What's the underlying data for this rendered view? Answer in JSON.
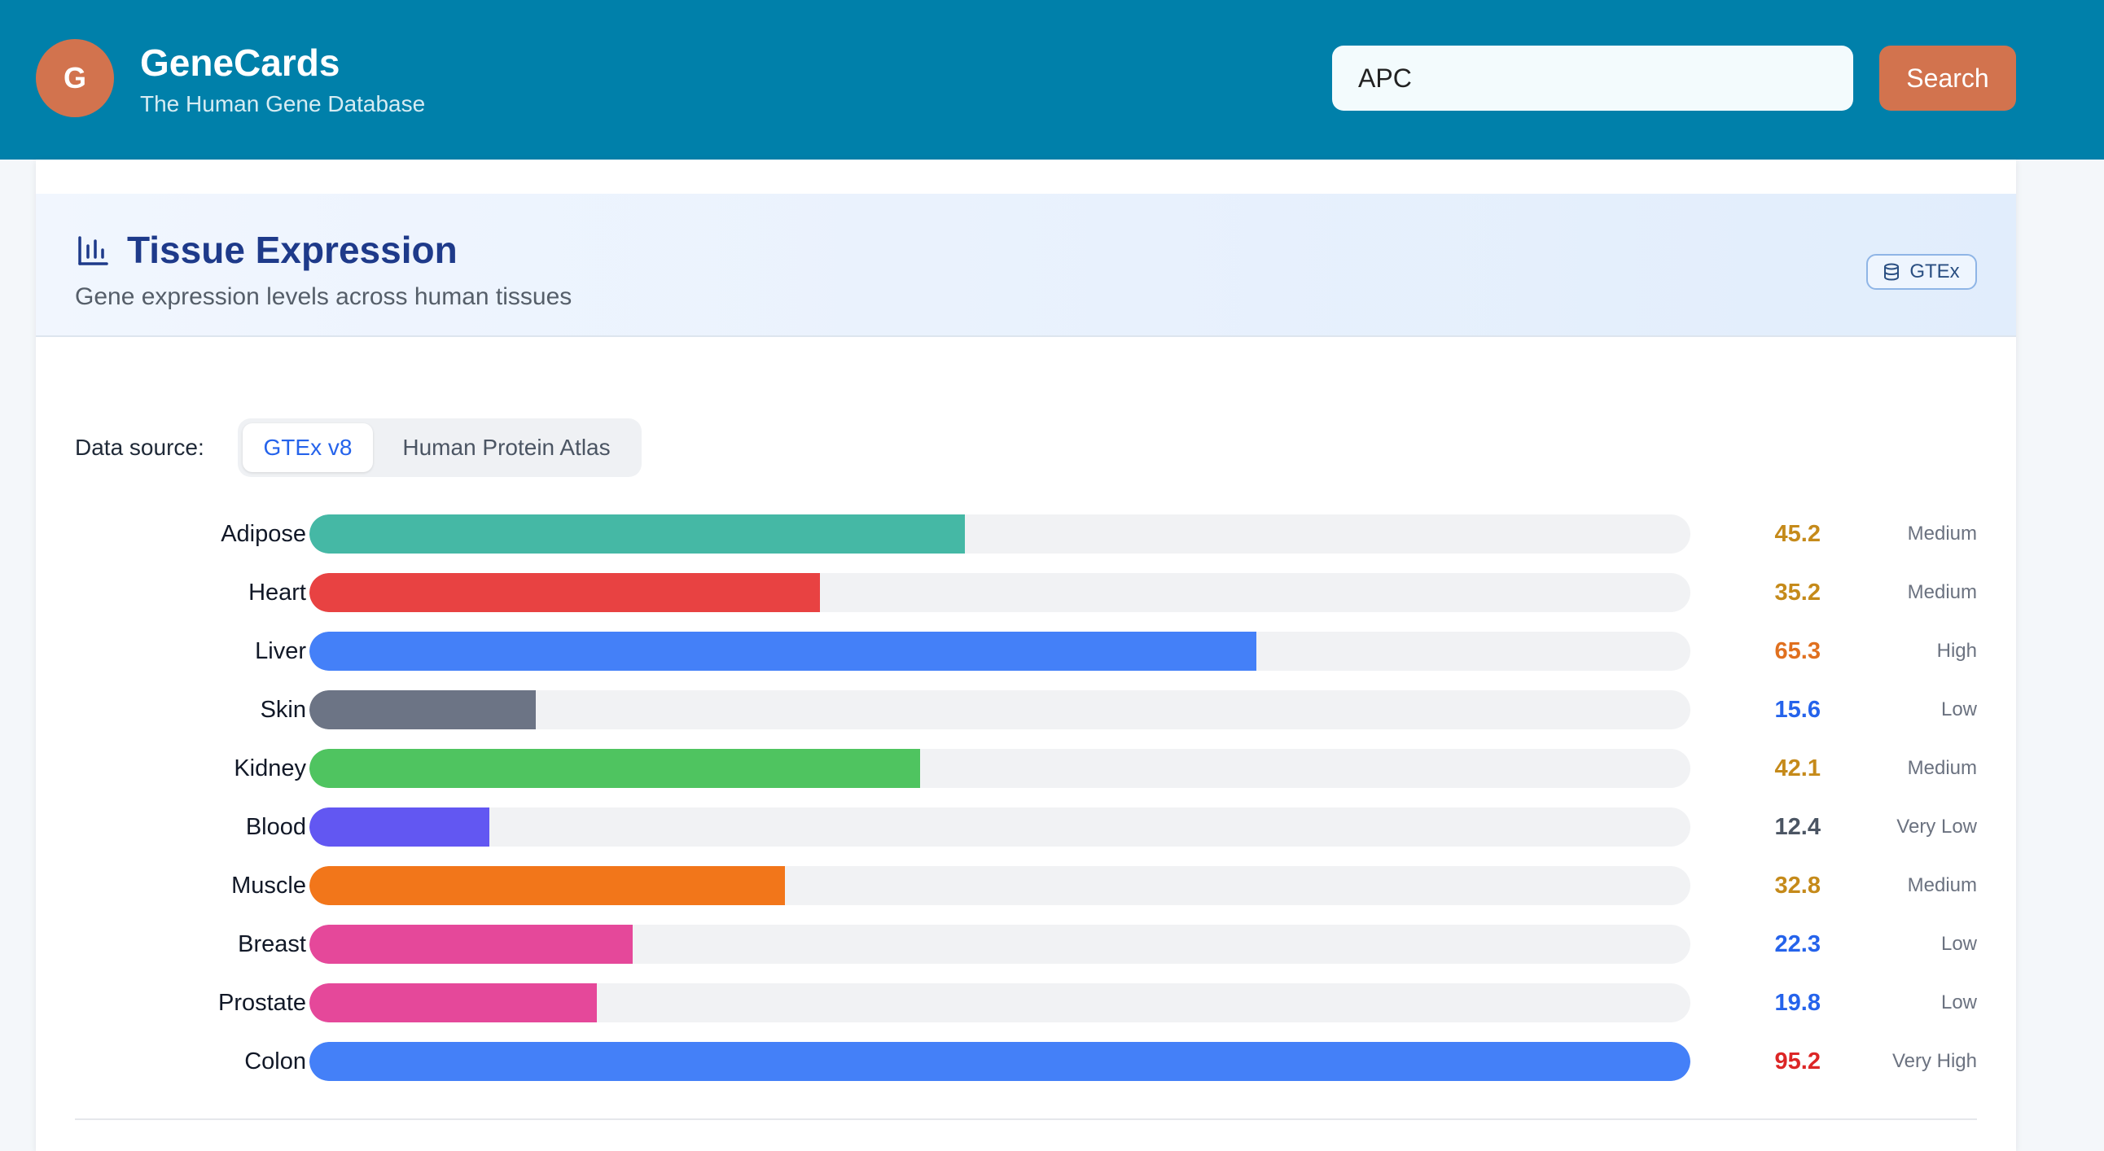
{
  "header": {
    "logo_letter": "G",
    "title": "GeneCards",
    "subtitle": "The Human Gene Database",
    "search_value": "APC",
    "search_button": "Search"
  },
  "section": {
    "title": "Tissue Expression",
    "subtitle": "Gene expression levels across human tissues",
    "badge": "GTEx"
  },
  "data_source": {
    "label": "Data source:",
    "options": [
      "GTEx v8",
      "Human Protein Atlas"
    ],
    "selected": "GTEx v8"
  },
  "chart_data": {
    "type": "bar",
    "orientation": "horizontal",
    "xlim": [
      0,
      95.2
    ],
    "categories": [
      "Adipose",
      "Heart",
      "Liver",
      "Skin",
      "Kidney",
      "Blood",
      "Muscle",
      "Breast",
      "Prostate",
      "Colon"
    ],
    "values": [
      45.2,
      35.2,
      65.3,
      15.6,
      42.1,
      12.4,
      32.8,
      22.3,
      19.8,
      95.2
    ],
    "value_labels": [
      "45.2",
      "35.2",
      "65.3",
      "15.6",
      "42.1",
      "12.4",
      "32.8",
      "22.3",
      "19.8",
      "95.2"
    ],
    "levels": [
      "Medium",
      "Medium",
      "High",
      "Low",
      "Medium",
      "Very Low",
      "Medium",
      "Low",
      "Low",
      "Very High"
    ],
    "bar_colors": [
      "#45b8a5",
      "#e84242",
      "#4480f8",
      "#6c7485",
      "#4fc460",
      "#6257f2",
      "#f2761a",
      "#e5489a",
      "#e5489a",
      "#4480f8"
    ],
    "value_colors": [
      "#c58a1a",
      "#c58a1a",
      "#e0701f",
      "#2563eb",
      "#c58a1a",
      "#4b5563",
      "#c58a1a",
      "#2563eb",
      "#2563eb",
      "#dc2626"
    ]
  },
  "colors": {
    "header_bg": "#0080aa",
    "accent": "#d2734e",
    "title": "#1e3a8a"
  }
}
